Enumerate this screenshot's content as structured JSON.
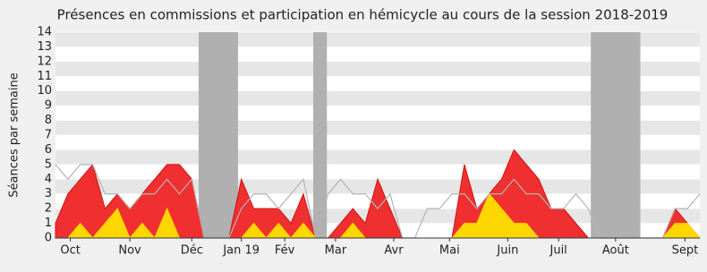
{
  "chart_data": {
    "type": "area",
    "title": "Présences en commissions et participation en hémicycle au cours de la session 2018-2019",
    "y_label": "Séances par semaine",
    "x": [
      0,
      1,
      2,
      3,
      4,
      5,
      6,
      7,
      8,
      9,
      10,
      11,
      12,
      13,
      14,
      15,
      16,
      17,
      18,
      19,
      20,
      21,
      22,
      23,
      24,
      25,
      26,
      27,
      28,
      29,
      30,
      31,
      32,
      33,
      34,
      35,
      36,
      37,
      38,
      39,
      40,
      41,
      42,
      43,
      44,
      45,
      46,
      47,
      48,
      49,
      50,
      51,
      52
    ],
    "xlim": [
      0,
      52
    ],
    "xticks": [
      {
        "value": 1.2,
        "label": "Oct"
      },
      {
        "value": 6.0,
        "label": "Nov"
      },
      {
        "value": 11.0,
        "label": "Déc"
      },
      {
        "value": 15.0,
        "label": "Jan 19"
      },
      {
        "value": 18.5,
        "label": "Fév"
      },
      {
        "value": 22.6,
        "label": "Mar"
      },
      {
        "value": 27.3,
        "label": "Avr"
      },
      {
        "value": 31.8,
        "label": "Mai"
      },
      {
        "value": 36.5,
        "label": "Juin"
      },
      {
        "value": 40.6,
        "label": "Juil"
      },
      {
        "value": 45.2,
        "label": "Août"
      },
      {
        "value": 50.8,
        "label": "Sept"
      }
    ],
    "ylim": [
      0,
      14
    ],
    "yticks": [
      0,
      1,
      2,
      3,
      4,
      5,
      6,
      7,
      8,
      9,
      10,
      11,
      12,
      13,
      14
    ],
    "shaded_spans": [
      [
        11.55,
        14.73
      ],
      [
        20.8,
        21.9
      ],
      [
        43.2,
        47.2
      ]
    ],
    "series": [
      {
        "kind": "area",
        "color": "#f03030",
        "values": [
          1,
          3,
          4,
          5,
          2,
          3,
          2,
          3,
          4,
          5,
          5,
          4,
          0,
          0,
          0,
          4,
          2,
          2,
          2,
          1,
          3,
          0,
          0,
          1,
          2,
          1,
          4,
          2,
          0,
          0,
          0,
          0,
          0,
          5,
          2,
          3,
          4,
          6,
          5,
          4,
          2,
          2,
          1,
          0,
          0,
          0,
          0,
          0,
          0,
          0,
          2,
          1,
          0
        ]
      },
      {
        "kind": "area",
        "color": "#ffd700",
        "values": [
          0,
          0,
          1,
          0,
          1,
          2,
          0,
          1,
          0,
          2,
          0,
          0,
          0,
          0,
          0,
          0,
          1,
          0,
          1,
          0,
          1,
          0,
          0,
          0,
          1,
          0,
          0,
          0,
          0,
          0,
          0,
          0,
          0,
          1,
          1,
          3,
          2,
          1,
          1,
          0,
          0,
          0,
          0,
          0,
          0,
          0,
          0,
          0,
          0,
          0,
          1,
          1,
          0
        ]
      },
      {
        "kind": "line",
        "color": "#b4b4b4",
        "values": [
          5,
          4,
          5,
          5,
          3,
          3,
          2,
          3,
          3,
          4,
          3,
          4,
          0,
          0,
          0,
          2,
          3,
          3,
          2,
          3,
          4,
          0,
          3,
          4,
          3,
          3,
          2,
          3,
          0,
          0,
          2,
          2,
          3,
          3,
          2,
          3,
          3,
          4,
          3,
          3,
          2,
          2,
          3,
          2,
          0,
          0,
          0,
          0,
          0,
          0,
          2,
          2,
          3
        ]
      }
    ]
  }
}
